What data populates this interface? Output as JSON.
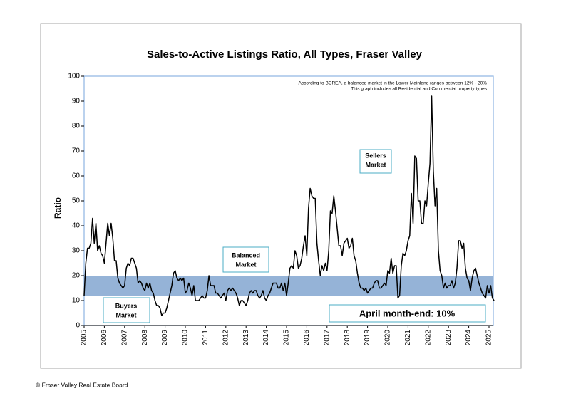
{
  "chart_data": {
    "type": "line",
    "title": "Sales-to-Active Listings Ratio, All Types, Fraser Valley",
    "y_label": "Ratio",
    "notes": [
      "According to BCREA, a balanced market in the Lower Mainland ranges between 12% - 20%",
      "This graph includes all Residential and Commercial property types"
    ],
    "zone_labels": {
      "sellers": [
        "Sellers",
        "Market"
      ],
      "balanced": [
        "Balanced",
        "Market"
      ],
      "buyers": [
        "Buyers",
        "Market"
      ]
    },
    "annotation": "April month-end: 10%",
    "footer": "© Fraser Valley Real Estate Board",
    "band": [
      12,
      20
    ],
    "band_color": "#95b3d7",
    "color": "#000000",
    "ylim": [
      0,
      100
    ],
    "yticks": [
      0,
      10,
      20,
      30,
      40,
      50,
      60,
      70,
      80,
      90,
      100
    ],
    "categories": [
      "2005",
      null,
      null,
      null,
      null,
      null,
      null,
      null,
      null,
      null,
      null,
      null,
      "2006",
      null,
      null,
      null,
      null,
      null,
      null,
      null,
      null,
      null,
      null,
      null,
      "2007",
      null,
      null,
      null,
      null,
      null,
      null,
      null,
      null,
      null,
      null,
      null,
      "2008",
      null,
      null,
      null,
      null,
      null,
      null,
      null,
      null,
      null,
      null,
      null,
      "2009",
      null,
      null,
      null,
      null,
      null,
      null,
      null,
      null,
      null,
      null,
      null,
      "2010",
      null,
      null,
      null,
      null,
      null,
      null,
      null,
      null,
      null,
      null,
      null,
      "2011",
      null,
      null,
      null,
      null,
      null,
      null,
      null,
      null,
      null,
      null,
      null,
      "2012",
      null,
      null,
      null,
      null,
      null,
      null,
      null,
      null,
      null,
      null,
      null,
      "2013",
      null,
      null,
      null,
      null,
      null,
      null,
      null,
      null,
      null,
      null,
      null,
      "2014",
      null,
      null,
      null,
      null,
      null,
      null,
      null,
      null,
      null,
      null,
      null,
      "2015",
      null,
      null,
      null,
      null,
      null,
      null,
      null,
      null,
      null,
      null,
      null,
      "2016",
      null,
      null,
      null,
      null,
      null,
      null,
      null,
      null,
      null,
      null,
      null,
      "2017",
      null,
      null,
      null,
      null,
      null,
      null,
      null,
      null,
      null,
      null,
      null,
      "2018",
      null,
      null,
      null,
      null,
      null,
      null,
      null,
      null,
      null,
      null,
      null,
      "2019",
      null,
      null,
      null,
      null,
      null,
      null,
      null,
      null,
      null,
      null,
      null,
      "2020",
      null,
      null,
      null,
      null,
      null,
      null,
      null,
      null,
      null,
      null,
      null,
      "2021",
      null,
      null,
      null,
      null,
      null,
      null,
      null,
      null,
      null,
      null,
      null,
      "2022",
      null,
      null,
      null,
      null,
      null,
      null,
      null,
      null,
      null,
      null,
      null,
      "2023",
      null,
      null,
      null,
      null,
      null,
      null,
      null,
      null,
      null,
      null,
      null,
      "2024",
      null,
      null,
      null,
      null,
      null,
      null,
      null,
      null,
      null,
      null,
      null,
      "2025",
      null,
      null,
      null
    ],
    "values": [
      12,
      25,
      31,
      31,
      33,
      43,
      33,
      41,
      30,
      32,
      29,
      28,
      25,
      33,
      41,
      36,
      41,
      35,
      26,
      26,
      19,
      17,
      16,
      15,
      16,
      23,
      25,
      24,
      27,
      27,
      25,
      23,
      17,
      18,
      17,
      15,
      14,
      17,
      15,
      17,
      14,
      13,
      10,
      8,
      8,
      7,
      4,
      5,
      5,
      7,
      10,
      13,
      16,
      21,
      22,
      19,
      18,
      19,
      18,
      19,
      13,
      14,
      17,
      15,
      12,
      16,
      10,
      10,
      10,
      11,
      12,
      11,
      11,
      14,
      20,
      16,
      16,
      16,
      13,
      13,
      12,
      11,
      12,
      13,
      10,
      14,
      15,
      14,
      15,
      14,
      13,
      11,
      8,
      10,
      10,
      9,
      8,
      10,
      13,
      14,
      13,
      14,
      14,
      12,
      11,
      12,
      14,
      11,
      10,
      12,
      13,
      15,
      17,
      17,
      17,
      15,
      15,
      17,
      14,
      17,
      12,
      17,
      23,
      24,
      23,
      30,
      28,
      23,
      24,
      27,
      32,
      36,
      28,
      47,
      55,
      52,
      51,
      51,
      33,
      26,
      20,
      24,
      22,
      25,
      22,
      30,
      46,
      45,
      52,
      46,
      39,
      32,
      32,
      28,
      33,
      34,
      35,
      31,
      32,
      35,
      28,
      26,
      21,
      17,
      15,
      15,
      14,
      15,
      13,
      14,
      15,
      15,
      17,
      18,
      18,
      15,
      15,
      16,
      17,
      16,
      22,
      21,
      27,
      21,
      24,
      24,
      11,
      12,
      24,
      29,
      28,
      30,
      34,
      36,
      53,
      41,
      68,
      67,
      50,
      50,
      41,
      41,
      50,
      48,
      57,
      65,
      92,
      62,
      48,
      55,
      30,
      22,
      20,
      15,
      17,
      15,
      16,
      16,
      18,
      15,
      17,
      23,
      34,
      34,
      31,
      33,
      23,
      19,
      18,
      14,
      19,
      22,
      23,
      20,
      17,
      15,
      13,
      12,
      11,
      16,
      13,
      16,
      11,
      10
    ]
  }
}
